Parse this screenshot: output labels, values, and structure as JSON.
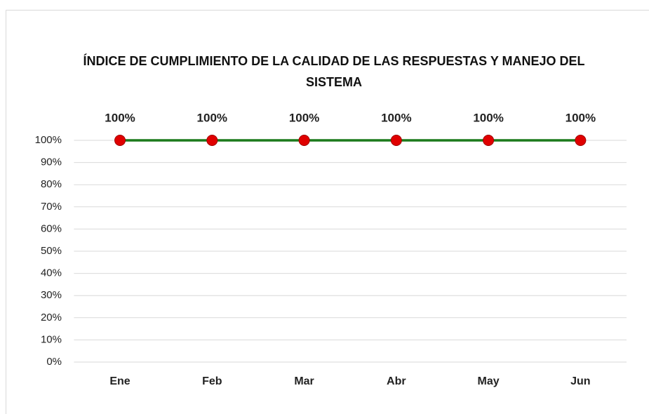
{
  "chart_data": {
    "type": "line",
    "title": "ÍNDICE DE CUMPLIMIENTO DE LA CALIDAD DE LAS RESPUESTAS Y MANEJO DEL SISTEMA",
    "categories": [
      "Ene",
      "Feb",
      "Mar",
      "Abr",
      "May",
      "Jun"
    ],
    "values": [
      100,
      100,
      100,
      100,
      100,
      100
    ],
    "value_labels": [
      "100%",
      "100%",
      "100%",
      "100%",
      "100%",
      "100%"
    ],
    "color": "#1b7a1b",
    "marker_color": "#e00000",
    "ylim": [
      0,
      100
    ],
    "yticks": [
      {
        "value": 0,
        "label": "0%"
      },
      {
        "value": 10,
        "label": "10%"
      },
      {
        "value": 20,
        "label": "20%"
      },
      {
        "value": 30,
        "label": "30%"
      },
      {
        "value": 40,
        "label": "40%"
      },
      {
        "value": 50,
        "label": "50%"
      },
      {
        "value": 60,
        "label": "60%"
      },
      {
        "value": 70,
        "label": "70%"
      },
      {
        "value": 80,
        "label": "80%"
      },
      {
        "value": 90,
        "label": "90%"
      },
      {
        "value": 100,
        "label": "100%"
      }
    ],
    "grid": true
  }
}
